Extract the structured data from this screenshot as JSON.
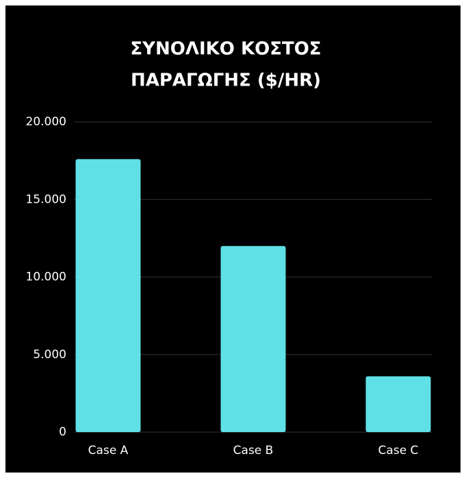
{
  "chart_data": {
    "type": "bar",
    "title": [
      "ΣΥΝΟΛΙΚΟ ΚΟΣΤΟΣ",
      "ΠΑΡΑΓΩΓΗΣ ($/HR)"
    ],
    "categories": [
      "Case A",
      "Case B",
      "Case C"
    ],
    "values": [
      17600,
      12000,
      3600
    ],
    "color": "#5fe0e6",
    "ylim": [
      0,
      20000
    ],
    "yticks": [
      0,
      {
        "value": 5000,
        "label": "5.000"
      },
      {
        "value": 10000,
        "label": "10.000"
      },
      {
        "value": 15000,
        "label": "15.000"
      },
      {
        "value": 20000,
        "label": "20.000"
      }
    ],
    "grid": true
  }
}
